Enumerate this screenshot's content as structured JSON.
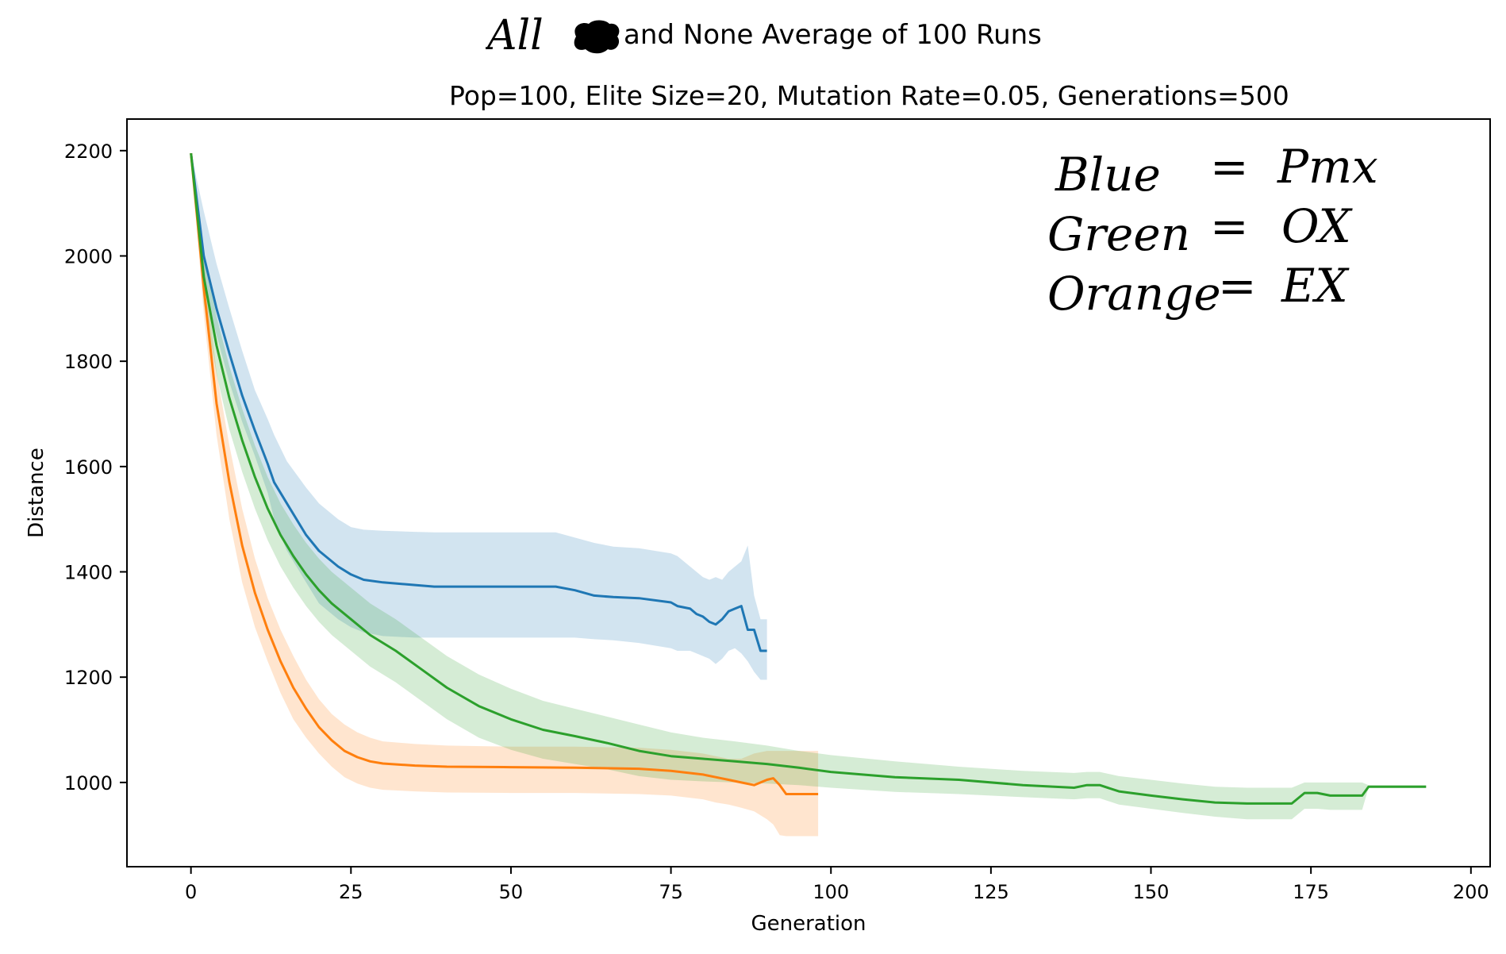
{
  "chart_data": {
    "type": "line",
    "title": "All ✱ and None Average of 100 Runs",
    "title_parts": {
      "hand": "All",
      "rest": "and None Average of 100 Runs"
    },
    "subtitle": "Pop=100, Elite Size=20, Mutation Rate=0.05, Generations=500",
    "xlabel": "Generation",
    "ylabel": "Distance",
    "xlim": [
      -10,
      203
    ],
    "ylim": [
      840,
      2260
    ],
    "xticks": [
      0,
      25,
      50,
      75,
      100,
      125,
      150,
      175,
      200
    ],
    "yticks": [
      1000,
      1200,
      1400,
      1600,
      1800,
      2000,
      2200
    ],
    "grid": false,
    "legend": "handwritten note top-right",
    "annotation": {
      "lines": [
        {
          "left": "Blue",
          "eq": "=",
          "right": "Pmx"
        },
        {
          "left": "Green",
          "eq": "=",
          "right": "OX"
        },
        {
          "left": "Orange",
          "eq": "=",
          "right": "EX"
        }
      ]
    },
    "series": [
      {
        "color": "#1f77b4",
        "band_color": "#1f77b4",
        "x": [
          0,
          2,
          4,
          6,
          8,
          10,
          12,
          13,
          15,
          18,
          20,
          23,
          25,
          27,
          30,
          35,
          38,
          45,
          50,
          57,
          60,
          63,
          66,
          70,
          75,
          76,
          78,
          79,
          80,
          81,
          82,
          83,
          84,
          85,
          86,
          87,
          88,
          89,
          90
        ],
        "y": [
          2195,
          2000,
          1900,
          1815,
          1735,
          1668,
          1605,
          1570,
          1530,
          1470,
          1440,
          1410,
          1395,
          1385,
          1380,
          1375,
          1372,
          1372,
          1372,
          1372,
          1365,
          1355,
          1352,
          1350,
          1342,
          1335,
          1330,
          1320,
          1315,
          1305,
          1300,
          1310,
          1325,
          1330,
          1335,
          1290,
          1290,
          1250,
          1250
        ],
        "upper": [
          2195,
          2085,
          1985,
          1900,
          1820,
          1745,
          1690,
          1660,
          1610,
          1560,
          1530,
          1500,
          1485,
          1480,
          1478,
          1476,
          1475,
          1475,
          1475,
          1475,
          1465,
          1455,
          1448,
          1445,
          1435,
          1430,
          1410,
          1400,
          1390,
          1385,
          1390,
          1385,
          1400,
          1410,
          1420,
          1450,
          1355,
          1310,
          1310
        ],
        "lower": [
          2195,
          1940,
          1850,
          1760,
          1685,
          1620,
          1550,
          1500,
          1440,
          1380,
          1340,
          1310,
          1295,
          1285,
          1278,
          1275,
          1275,
          1275,
          1275,
          1275,
          1275,
          1272,
          1270,
          1265,
          1255,
          1250,
          1250,
          1245,
          1240,
          1235,
          1225,
          1235,
          1250,
          1255,
          1245,
          1230,
          1210,
          1195,
          1195
        ]
      },
      {
        "color": "#ff7f0e",
        "band_color": "#ff7f0e",
        "x": [
          0,
          2,
          4,
          6,
          8,
          10,
          12,
          14,
          16,
          18,
          20,
          22,
          24,
          26,
          28,
          30,
          35,
          40,
          50,
          60,
          70,
          75,
          80,
          82,
          84,
          86,
          88,
          90,
          91,
          92,
          93,
          95,
          98
        ],
        "y": [
          2195,
          1940,
          1720,
          1570,
          1450,
          1360,
          1290,
          1230,
          1180,
          1140,
          1105,
          1080,
          1060,
          1048,
          1040,
          1036,
          1032,
          1030,
          1029,
          1028,
          1026,
          1022,
          1015,
          1010,
          1005,
          1000,
          995,
          1005,
          1008,
          995,
          978,
          978,
          978
        ],
        "upper": [
          2195,
          1990,
          1780,
          1640,
          1520,
          1425,
          1350,
          1290,
          1240,
          1195,
          1158,
          1130,
          1110,
          1095,
          1085,
          1078,
          1073,
          1070,
          1068,
          1068,
          1066,
          1062,
          1055,
          1050,
          1045,
          1045,
          1055,
          1060,
          1060,
          1060,
          1060,
          1060,
          1060
        ],
        "lower": [
          2195,
          1890,
          1660,
          1500,
          1380,
          1295,
          1230,
          1170,
          1120,
          1085,
          1055,
          1030,
          1010,
          998,
          990,
          986,
          983,
          981,
          980,
          980,
          978,
          975,
          968,
          962,
          958,
          952,
          945,
          930,
          920,
          900,
          898,
          898,
          898
        ]
      },
      {
        "color": "#2ca02c",
        "band_color": "#2ca02c",
        "x": [
          0,
          2,
          4,
          6,
          8,
          10,
          12,
          14,
          16,
          18,
          20,
          22,
          25,
          28,
          32,
          36,
          40,
          45,
          50,
          55,
          60,
          65,
          70,
          75,
          80,
          85,
          90,
          95,
          100,
          110,
          120,
          130,
          138,
          140,
          142,
          145,
          150,
          155,
          160,
          165,
          170,
          172,
          174,
          176,
          178,
          183,
          184,
          193
        ],
        "y": [
          2195,
          1960,
          1830,
          1730,
          1650,
          1580,
          1520,
          1470,
          1430,
          1395,
          1365,
          1340,
          1310,
          1280,
          1250,
          1215,
          1180,
          1145,
          1120,
          1100,
          1088,
          1075,
          1060,
          1050,
          1045,
          1040,
          1035,
          1028,
          1020,
          1010,
          1005,
          995,
          990,
          995,
          995,
          983,
          975,
          968,
          962,
          960,
          960,
          960,
          980,
          980,
          975,
          975,
          992,
          992
        ],
        "upper": [
          2195,
          2010,
          1885,
          1790,
          1710,
          1640,
          1580,
          1530,
          1490,
          1455,
          1425,
          1400,
          1370,
          1340,
          1310,
          1275,
          1240,
          1205,
          1178,
          1155,
          1140,
          1125,
          1110,
          1095,
          1085,
          1078,
          1070,
          1060,
          1052,
          1040,
          1030,
          1022,
          1018,
          1020,
          1020,
          1012,
          1005,
          998,
          992,
          990,
          990,
          990,
          1000,
          1000,
          1000,
          1000,
          995,
          995
        ],
        "lower": [
          2195,
          1910,
          1775,
          1670,
          1590,
          1520,
          1460,
          1410,
          1370,
          1335,
          1305,
          1280,
          1250,
          1220,
          1190,
          1155,
          1120,
          1085,
          1062,
          1045,
          1035,
          1025,
          1012,
          1005,
          1002,
          1000,
          998,
          995,
          990,
          982,
          978,
          972,
          968,
          970,
          970,
          958,
          950,
          942,
          935,
          930,
          930,
          930,
          950,
          950,
          948,
          948,
          990,
          990
        ]
      }
    ]
  }
}
